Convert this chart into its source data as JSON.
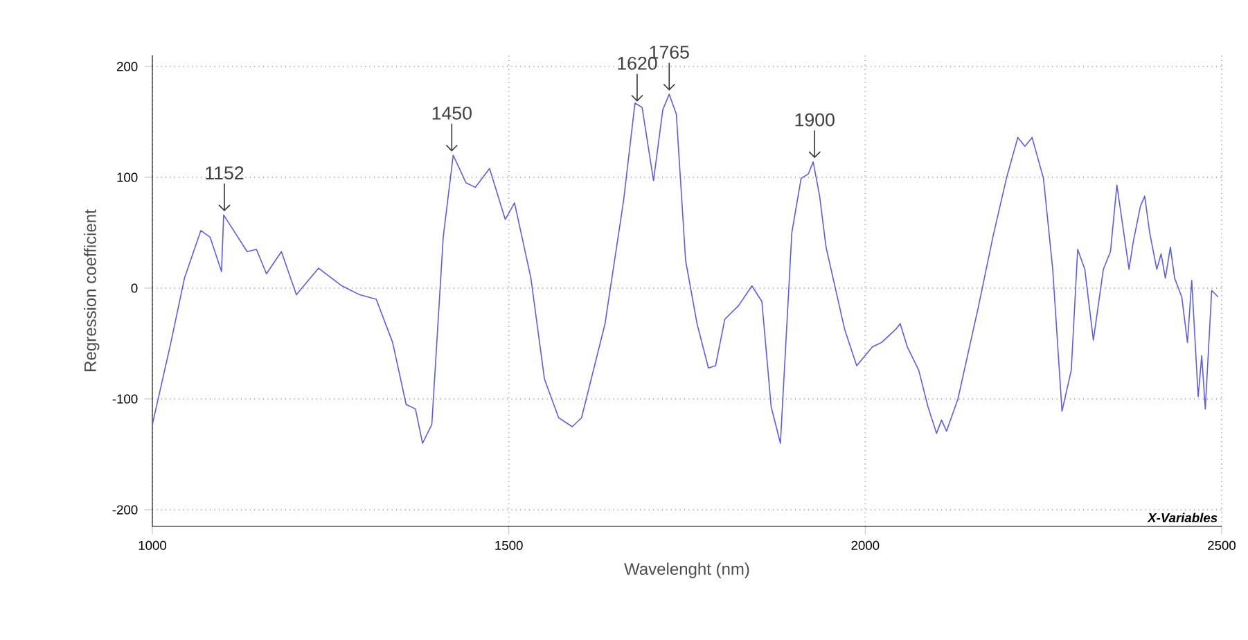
{
  "chart_data": {
    "type": "line",
    "xlabel": "Wavelenght (nm)",
    "ylabel": "Regression coefficient",
    "color": "#5b5bf0",
    "x": [
      1000,
      1026,
      1045,
      1068,
      1081,
      1097,
      1100,
      1110,
      1133,
      1146,
      1160,
      1181,
      1202,
      1233,
      1266,
      1291,
      1314,
      1337,
      1356,
      1369,
      1379,
      1392,
      1408,
      1422,
      1440,
      1453,
      1473,
      1495,
      1508,
      1531,
      1550,
      1570,
      1589,
      1602,
      1635,
      1661,
      1677,
      1687,
      1703,
      1716,
      1725,
      1735,
      1748,
      1764,
      1780,
      1790,
      1803,
      1822,
      1841,
      1855,
      1868,
      1881,
      1897,
      1910,
      1920,
      1927,
      1936,
      1945,
      1958,
      1971,
      1988,
      2010,
      2023,
      2043,
      2049,
      2059,
      2075,
      2088,
      2100,
      2107,
      2114,
      2130,
      2159,
      2179,
      2198,
      2214,
      2224,
      2234,
      2250,
      2263,
      2276,
      2289,
      2298,
      2308,
      2320,
      2334,
      2344,
      2353,
      2370,
      2376,
      2386,
      2392,
      2399,
      2409,
      2415,
      2421,
      2428,
      2434,
      2444,
      2452,
      2458,
      2467,
      2472,
      2477,
      2486,
      2495
    ],
    "values": [
      -123,
      -49,
      9,
      52,
      46,
      15,
      66,
      56,
      33,
      35,
      13,
      33,
      -6,
      18,
      2,
      -6,
      -10,
      -49,
      -105,
      -109,
      -140,
      -123,
      46,
      120,
      95,
      91,
      108,
      62,
      77,
      9,
      -82,
      -117,
      -125,
      -117,
      -32,
      79,
      167,
      163,
      97,
      161,
      175,
      157,
      25,
      -32,
      -72,
      -70,
      -28,
      -16,
      2,
      -12,
      -107,
      -140,
      50,
      99,
      103,
      114,
      83,
      37,
      0,
      -37,
      -70,
      -53,
      -49,
      -37,
      -32,
      -53,
      -74,
      -107,
      -131,
      -119,
      -129,
      -100,
      -16,
      46,
      99,
      136,
      128,
      136,
      99,
      17,
      -111,
      -74,
      35,
      17,
      -47,
      17,
      33,
      93,
      17,
      42,
      74,
      83,
      50,
      17,
      31,
      9,
      37,
      9,
      -8,
      -49,
      7,
      -98,
      -61,
      -109,
      -2,
      -8
    ],
    "xlim": [
      1000,
      2500
    ],
    "ylim": [
      -215,
      210
    ],
    "xticks": [
      1000,
      1500,
      2000,
      2500
    ],
    "yticks": [
      -200,
      -100,
      0,
      100,
      200
    ],
    "grid": true,
    "annotations": [
      {
        "text": "1152",
        "x": 1101,
        "y": 66
      },
      {
        "text": "1450",
        "x": 1420,
        "y": 120
      },
      {
        "text": "1620",
        "x": 1680,
        "y": 165
      },
      {
        "text": "1765",
        "x": 1725,
        "y": 175
      },
      {
        "text": "1900",
        "x": 1929,
        "y": 114
      },
      "X-Variables"
    ]
  }
}
